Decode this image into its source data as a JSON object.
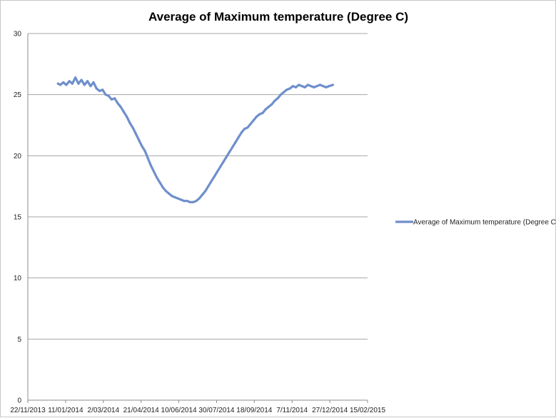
{
  "chart_data": {
    "type": "line",
    "title": "Average of Maximum temperature (Degree C)",
    "xlabel": "",
    "ylabel": "",
    "ylim": [
      0,
      30
    ],
    "yticks": [
      0,
      5,
      10,
      15,
      20,
      25,
      30
    ],
    "xlim": [
      "2013-11-22",
      "2015-02-15"
    ],
    "xticks": [
      "22/11/2013",
      "11/01/2014",
      "2/03/2014",
      "21/04/2014",
      "10/06/2014",
      "30/07/2014",
      "18/09/2014",
      "7/11/2014",
      "27/12/2014",
      "15/02/2015"
    ],
    "grid": true,
    "legend_position": "right",
    "series": [
      {
        "name": "Average of Maximum temperature (Degree C)",
        "color": "#6f8fcc",
        "x": [
          "2014-01-01",
          "2014-01-04",
          "2014-01-08",
          "2014-01-12",
          "2014-01-16",
          "2014-01-20",
          "2014-01-24",
          "2014-01-28",
          "2014-02-01",
          "2014-02-05",
          "2014-02-09",
          "2014-02-13",
          "2014-02-17",
          "2014-02-21",
          "2014-02-25",
          "2014-03-01",
          "2014-03-05",
          "2014-03-09",
          "2014-03-13",
          "2014-03-17",
          "2014-03-21",
          "2014-03-25",
          "2014-03-29",
          "2014-04-02",
          "2014-04-06",
          "2014-04-10",
          "2014-04-14",
          "2014-04-18",
          "2014-04-22",
          "2014-04-26",
          "2014-04-30",
          "2014-05-04",
          "2014-05-08",
          "2014-05-12",
          "2014-05-16",
          "2014-05-20",
          "2014-05-24",
          "2014-05-28",
          "2014-06-01",
          "2014-06-05",
          "2014-06-09",
          "2014-06-13",
          "2014-06-17",
          "2014-06-21",
          "2014-06-25",
          "2014-06-29",
          "2014-07-03",
          "2014-07-07",
          "2014-07-11",
          "2014-07-15",
          "2014-07-19",
          "2014-07-23",
          "2014-07-27",
          "2014-07-31",
          "2014-08-04",
          "2014-08-08",
          "2014-08-12",
          "2014-08-16",
          "2014-08-20",
          "2014-08-24",
          "2014-08-28",
          "2014-09-01",
          "2014-09-05",
          "2014-09-09",
          "2014-09-13",
          "2014-09-17",
          "2014-09-21",
          "2014-09-25",
          "2014-09-29",
          "2014-10-03",
          "2014-10-07",
          "2014-10-11",
          "2014-10-15",
          "2014-10-19",
          "2014-10-23",
          "2014-10-27",
          "2014-10-31",
          "2014-11-04",
          "2014-11-08",
          "2014-11-12",
          "2014-11-16",
          "2014-11-20",
          "2014-11-24",
          "2014-11-28",
          "2014-12-02",
          "2014-12-06",
          "2014-12-10",
          "2014-12-14",
          "2014-12-18",
          "2014-12-22",
          "2014-12-26",
          "2014-12-31"
        ],
        "values": [
          25.9,
          25.8,
          26.0,
          25.8,
          26.1,
          25.9,
          26.4,
          25.9,
          26.2,
          25.8,
          26.1,
          25.7,
          26.0,
          25.5,
          25.3,
          25.4,
          25.0,
          24.9,
          24.6,
          24.7,
          24.3,
          24.0,
          23.6,
          23.2,
          22.7,
          22.3,
          21.8,
          21.3,
          20.8,
          20.4,
          19.8,
          19.2,
          18.7,
          18.2,
          17.8,
          17.4,
          17.1,
          16.9,
          16.7,
          16.6,
          16.5,
          16.4,
          16.3,
          16.3,
          16.2,
          16.2,
          16.3,
          16.5,
          16.8,
          17.1,
          17.5,
          17.9,
          18.3,
          18.7,
          19.1,
          19.5,
          19.9,
          20.3,
          20.7,
          21.1,
          21.5,
          21.9,
          22.2,
          22.3,
          22.6,
          22.9,
          23.2,
          23.4,
          23.5,
          23.8,
          24.0,
          24.2,
          24.5,
          24.7,
          25.0,
          25.2,
          25.4,
          25.5,
          25.7,
          25.6,
          25.8,
          25.7,
          25.6,
          25.8,
          25.7,
          25.6,
          25.7,
          25.8,
          25.7,
          25.6,
          25.7,
          25.8
        ]
      }
    ]
  }
}
